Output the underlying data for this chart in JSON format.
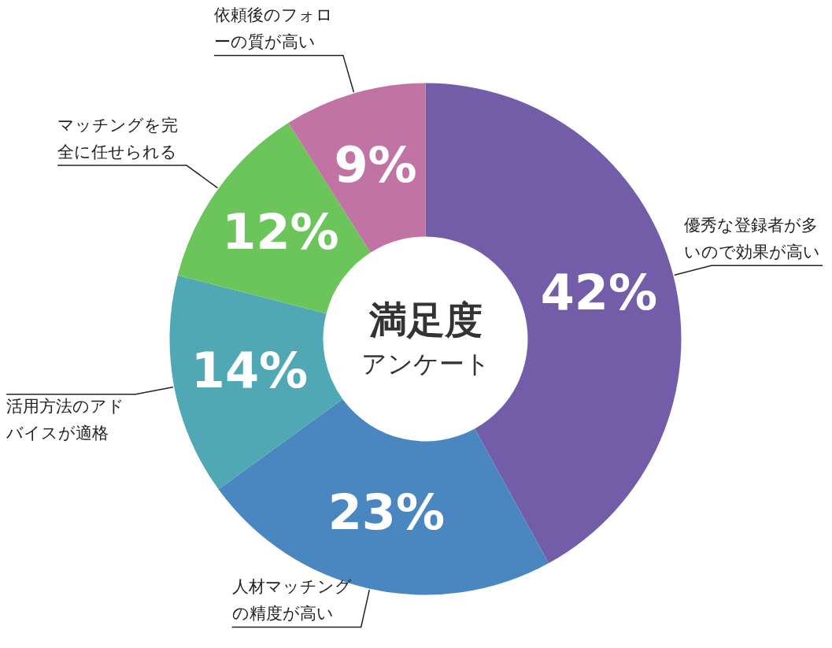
{
  "chart_data": {
    "type": "donut",
    "title": "満足度",
    "subtitle": "アンケート",
    "categories": [
      "優秀な登録者が多いので効果が高い",
      "人材マッチングの精度が高い",
      "活用方法のアドバイスが適格",
      "マッチングを完全に任せられる",
      "依頼後のフォローの質が高い"
    ],
    "values": [
      42,
      23,
      14,
      12,
      9
    ],
    "value_labels": [
      "42%",
      "23%",
      "14%",
      "12%",
      "9%"
    ],
    "colors": [
      "#735ca8",
      "#4a86c0",
      "#50a8b4",
      "#6cc55a",
      "#c173a3"
    ]
  }
}
